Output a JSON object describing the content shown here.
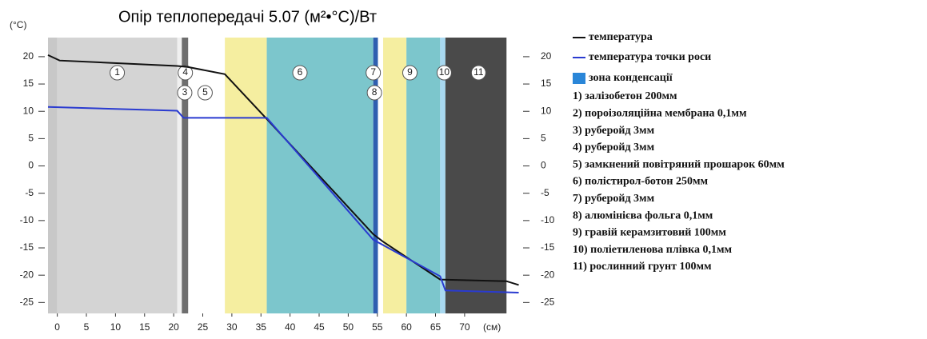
{
  "chart_data": {
    "type": "line",
    "title": "Опір теплопередачі 5.07 (м²•°С)/Вт",
    "y_label": "(°C)",
    "x_label": "(см)",
    "xlim": [
      -1.6,
      79.5
    ],
    "ylim": [
      -27,
      23.5
    ],
    "xticks": [
      0,
      5,
      10,
      15,
      20,
      25,
      30,
      35,
      40,
      45,
      50,
      55,
      60,
      65,
      70
    ],
    "yticks": [
      20,
      15,
      10,
      5,
      0,
      -5,
      -10,
      -15,
      -20,
      -25
    ],
    "bands": [
      {
        "x": [
          -1.6,
          0
        ],
        "color": "#c8c8c8"
      },
      {
        "x": [
          0,
          20.6
        ],
        "color": "#d4d4d4"
      },
      {
        "x": [
          20.6,
          21.4
        ],
        "color": "#f0f0f0"
      },
      {
        "x": [
          21.4,
          22.5
        ],
        "color": "#6e6e6e"
      },
      {
        "x": [
          22.5,
          28.8
        ],
        "color": "#ffffff"
      },
      {
        "x": [
          28.8,
          36
        ],
        "color": "#f5eea0"
      },
      {
        "x": [
          36,
          54.3
        ],
        "color": "#7cc6cc"
      },
      {
        "x": [
          54.3,
          55.1
        ],
        "color": "#2f5fb0"
      },
      {
        "x": [
          55.1,
          56
        ],
        "color": "#ffffff"
      },
      {
        "x": [
          56,
          60
        ],
        "color": "#f5eea0"
      },
      {
        "x": [
          60,
          65.8
        ],
        "color": "#7cc6cc"
      },
      {
        "x": [
          65.8,
          66.7
        ],
        "color": "#a8d8f0"
      },
      {
        "x": [
          66.7,
          77.2
        ],
        "color": "#4a4a4a"
      }
    ],
    "layer_markers": [
      {
        "label": "1",
        "x": 10.3
      },
      {
        "label": "4",
        "x": 22.0
      },
      {
        "label": "3",
        "x": 21.9
      },
      {
        "label": "5",
        "x": 25.4
      },
      {
        "label": "6",
        "x": 41.7
      },
      {
        "label": "7",
        "x": 54.3
      },
      {
        "label": "8",
        "x": 54.5
      },
      {
        "label": "9",
        "x": 60.6
      },
      {
        "label": "10",
        "x": 66.5
      },
      {
        "label": "11",
        "x": 72.4
      }
    ],
    "series": [
      {
        "name": "температура",
        "color": "#111111",
        "x": [
          -1.6,
          0.4,
          20.6,
          22.5,
          28.8,
          36,
          54.3,
          55.9,
          65.8,
          77.2,
          79.3
        ],
        "values": [
          20.3,
          19.3,
          18.3,
          18.1,
          16.8,
          8.6,
          -12.5,
          -13.8,
          -20.8,
          -21.1,
          -21.8
        ]
      },
      {
        "name": "температура точки роси",
        "color": "#2a3bd0",
        "x": [
          -1.6,
          20.6,
          21.7,
          36,
          54.3,
          65.8,
          66.7,
          79.3
        ],
        "values": [
          10.8,
          10.1,
          8.8,
          8.8,
          -13.5,
          -20.2,
          -22.8,
          -23.2
        ]
      }
    ],
    "zone_label": "зона конденсації",
    "zone_color": "#2a86d8",
    "layers": [
      "1) залізобетон 200мм",
      "2) пороізоляційна мембрана 0,1мм",
      "3) руберойд 3мм",
      "4) руберойд 3мм",
      "5) замкнений повітряний прошарок 60мм",
      "6) полістирол-ботон 250мм",
      "7) руберойд 3мм",
      "8) алюмінієва фольга 0,1мм",
      "9) гравій керамзитовий 100мм",
      "10) поліетиленова плівка 0,1мм",
      "11) рослинний грунт 100мм"
    ]
  }
}
